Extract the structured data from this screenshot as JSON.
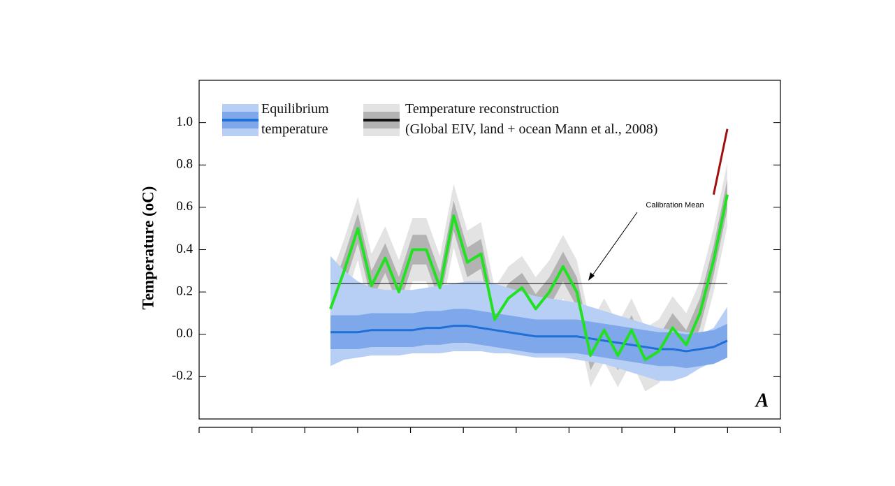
{
  "chart_data": {
    "type": "line",
    "y_label": "Temperature (oC)",
    "panel_label": "A",
    "ylim": [
      -0.4,
      1.2
    ],
    "yticks": [
      -0.2,
      {
        "value": 0,
        "label": "0.0"
      },
      0.2,
      0.4,
      0.6,
      0.8,
      {
        "value": 1,
        "label": "1.0"
      }
    ],
    "categories": [
      null,
      null,
      null,
      null,
      null,
      null,
      null,
      null,
      null,
      null,
      null,
      null,
      null,
      null,
      null,
      null,
      null,
      null,
      null,
      null,
      null,
      null,
      null,
      null,
      null,
      null,
      null,
      null,
      null,
      null
    ],
    "bands": [
      {
        "color": "#e3e3e3",
        "upper": [
          0.27,
          0.45,
          0.65,
          0.38,
          0.51,
          0.35,
          0.55,
          0.55,
          0.37,
          0.71,
          0.49,
          0.53,
          0.22,
          0.32,
          0.37,
          0.27,
          0.35,
          0.47,
          0.35,
          0.05,
          0.17,
          0.05,
          0.17,
          0.03,
          0.07,
          0.18,
          0.1,
          0.25,
          0.5,
          0.81
        ],
        "lower": [
          -0.03,
          0.15,
          0.35,
          0.08,
          0.21,
          0.05,
          0.25,
          0.25,
          0.07,
          0.41,
          0.19,
          0.23,
          -0.08,
          0.02,
          0.07,
          -0.03,
          0.05,
          0.17,
          0.05,
          -0.25,
          -0.13,
          -0.25,
          -0.13,
          -0.27,
          -0.23,
          -0.12,
          -0.2,
          -0.05,
          0.2,
          0.51
        ]
      },
      {
        "color": "#b3b3b3",
        "upper": [
          0.19,
          0.37,
          0.57,
          0.3,
          0.43,
          0.27,
          0.47,
          0.47,
          0.29,
          0.63,
          0.41,
          0.45,
          0.14,
          0.24,
          0.29,
          0.19,
          0.27,
          0.39,
          0.27,
          -0.03,
          0.09,
          -0.03,
          0.09,
          -0.05,
          -0.01,
          0.1,
          0.02,
          0.17,
          0.42,
          0.73
        ],
        "lower": [
          0.05,
          0.23,
          0.43,
          0.16,
          0.29,
          0.13,
          0.33,
          0.33,
          0.15,
          0.49,
          0.27,
          0.31,
          0.0,
          0.1,
          0.15,
          0.05,
          0.13,
          0.25,
          0.13,
          -0.17,
          -0.05,
          -0.17,
          -0.05,
          -0.19,
          -0.15,
          -0.04,
          -0.12,
          0.03,
          0.28,
          0.59
        ]
      },
      {
        "color": "#b8cff5",
        "upper": [
          0.37,
          0.3,
          0.25,
          0.22,
          0.21,
          0.21,
          0.21,
          0.22,
          0.23,
          0.24,
          0.25,
          0.25,
          0.24,
          0.22,
          0.2,
          0.18,
          0.17,
          0.16,
          0.15,
          0.13,
          0.11,
          0.09,
          0.07,
          0.05,
          0.03,
          0.02,
          0.01,
          0.0,
          0.03,
          0.13
        ],
        "lower": [
          -0.15,
          -0.12,
          -0.11,
          -0.1,
          -0.1,
          -0.1,
          -0.09,
          -0.09,
          -0.09,
          -0.08,
          -0.08,
          -0.08,
          -0.09,
          -0.09,
          -0.1,
          -0.11,
          -0.11,
          -0.11,
          -0.12,
          -0.13,
          -0.14,
          -0.16,
          -0.18,
          -0.2,
          -0.22,
          -0.22,
          -0.2,
          -0.16,
          -0.13,
          -0.11
        ]
      },
      {
        "color": "#7fa8ea",
        "upper": [
          0.09,
          0.09,
          0.09,
          0.1,
          0.1,
          0.1,
          0.1,
          0.11,
          0.11,
          0.12,
          0.12,
          0.11,
          0.1,
          0.09,
          0.08,
          0.07,
          0.07,
          0.07,
          0.07,
          0.06,
          0.05,
          0.04,
          0.03,
          0.02,
          0.01,
          0.01,
          0.0,
          0.01,
          0.02,
          0.05
        ],
        "lower": [
          -0.07,
          -0.07,
          -0.07,
          -0.06,
          -0.06,
          -0.06,
          -0.06,
          -0.05,
          -0.05,
          -0.04,
          -0.04,
          -0.05,
          -0.06,
          -0.07,
          -0.08,
          -0.09,
          -0.09,
          -0.09,
          -0.09,
          -0.1,
          -0.11,
          -0.12,
          -0.13,
          -0.14,
          -0.15,
          -0.15,
          -0.16,
          -0.15,
          -0.14,
          -0.11
        ]
      }
    ],
    "series": [
      {
        "name": "Equilibrium temperature",
        "color": "#1f6fd6",
        "values": [
          0.01,
          0.01,
          0.01,
          0.02,
          0.02,
          0.02,
          0.02,
          0.03,
          0.03,
          0.04,
          0.04,
          0.03,
          0.02,
          0.01,
          0.0,
          -0.01,
          -0.01,
          -0.01,
          -0.01,
          -0.02,
          -0.03,
          -0.04,
          -0.05,
          -0.06,
          -0.07,
          -0.07,
          -0.08,
          -0.07,
          -0.06,
          -0.03
        ]
      },
      {
        "name": "Temperature reconstruction",
        "source": "(Global EIV, land + ocean Mann et al., 2008)",
        "color": "#22e022",
        "legend_color": "#111111",
        "values": [
          0.12,
          0.3,
          0.5,
          0.23,
          0.36,
          0.2,
          0.4,
          0.4,
          0.22,
          0.56,
          0.34,
          0.38,
          0.07,
          0.17,
          0.22,
          0.12,
          0.2,
          0.32,
          0.2,
          -0.1,
          0.02,
          -0.1,
          0.02,
          -0.12,
          -0.08,
          0.03,
          -0.05,
          0.1,
          0.35,
          0.66
        ]
      },
      {
        "color": "#a01010",
        "values": [
          null,
          null,
          null,
          null,
          null,
          null,
          null,
          null,
          null,
          null,
          null,
          null,
          null,
          null,
          null,
          null,
          null,
          null,
          null,
          null,
          null,
          null,
          null,
          null,
          null,
          null,
          null,
          null,
          0.66,
          0.97
        ]
      }
    ],
    "annotations": [
      {
        "text": "Calibration Mean",
        "value": 0.24
      }
    ]
  }
}
